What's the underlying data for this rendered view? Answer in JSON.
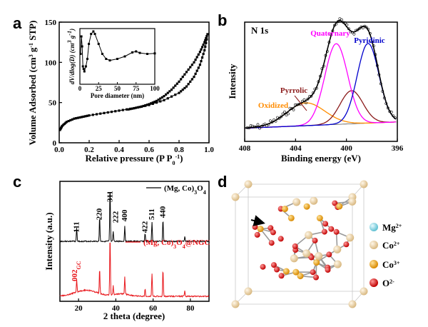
{
  "panels": {
    "a": "a",
    "b": "b",
    "c": "c",
    "d": "d"
  },
  "chart_data": [
    {
      "panel": "a",
      "type": "line",
      "xlabel": "Relative pressure (P P0-1)",
      "ylabel": "Volume Adsorbed (cm3 g-1 STP)",
      "xlim": [
        0.0,
        1.0
      ],
      "ylim": [
        0,
        150
      ],
      "xticks": [
        "0.0",
        "0.2",
        "0.4",
        "0.6",
        "0.8",
        "1.0"
      ],
      "yticks": [
        "0",
        "50",
        "100",
        "150"
      ],
      "series": [
        {
          "x": [
            0.005,
            0.02,
            0.05,
            0.1,
            0.15,
            0.2,
            0.3,
            0.4,
            0.5,
            0.6,
            0.7,
            0.8,
            0.85,
            0.9,
            0.94,
            0.97,
            0.99
          ],
          "y": [
            16,
            21,
            26,
            30,
            32,
            34,
            37,
            40,
            43,
            47,
            53,
            62,
            70,
            82,
            97,
            115,
            133
          ]
        },
        {
          "x": [
            0.99,
            0.97,
            0.94,
            0.9,
            0.85,
            0.8,
            0.75,
            0.7,
            0.65,
            0.6,
            0.55,
            0.5,
            0.45
          ],
          "y": [
            135,
            125,
            113,
            100,
            88,
            76,
            66,
            58,
            52,
            48,
            45,
            43,
            41
          ]
        }
      ],
      "inset": {
        "xlabel": "Pore diameter (nm)",
        "ylabel": "dV/dlog(D) (cm3 g-1)",
        "xlim": [
          0,
          100
        ],
        "xticks": [
          "0",
          "25",
          "50",
          "75",
          "100"
        ],
        "x": [
          1,
          2,
          3,
          4,
          5,
          6,
          8,
          10,
          12,
          15,
          18,
          20,
          25,
          30,
          35,
          40,
          50,
          60,
          70,
          75,
          80,
          90,
          100
        ],
        "y": [
          0.55,
          0.9,
          0.7,
          0.3,
          0.25,
          0.2,
          0.3,
          0.45,
          0.75,
          0.95,
          1.0,
          0.95,
          0.75,
          0.55,
          0.45,
          0.42,
          0.45,
          0.5,
          0.58,
          0.6,
          0.57,
          0.55,
          0.56
        ]
      }
    },
    {
      "panel": "b",
      "type": "line",
      "title": "N 1s",
      "xlabel": "Binding energy (eV)",
      "ylabel": "Intensity",
      "xlim": [
        408,
        396
      ],
      "xticks": [
        "408",
        "404",
        "400",
        "396"
      ],
      "peaks": [
        {
          "name": "Oxidized",
          "center": 403.2,
          "height": 0.22,
          "width": 1.5,
          "color": "#ff8c00"
        },
        {
          "name": "Pyrrolic",
          "center": 399.6,
          "height": 0.32,
          "width": 0.9,
          "color": "#8b1a1a"
        },
        {
          "name": "Quaternary",
          "center": 400.8,
          "height": 0.78,
          "width": 0.9,
          "color": "#ff00ff"
        },
        {
          "name": "Pyridinic",
          "center": 398.3,
          "height": 0.77,
          "width": 0.85,
          "color": "#0000cc"
        }
      ]
    },
    {
      "panel": "c",
      "type": "line",
      "xlabel": "2 theta (degree)",
      "ylabel": "Intensity (a.u.)",
      "xlim": [
        10,
        90
      ],
      "xticks": [
        "20",
        "40",
        "60",
        "80"
      ],
      "series": [
        {
          "name": "(Mg, Co)3O4",
          "color": "#000000",
          "peaks": [
            [
              19,
              0.25
            ],
            [
              31.3,
              0.45
            ],
            [
              36.9,
              1.0
            ],
            [
              38.6,
              0.18
            ],
            [
              44.8,
              0.28
            ],
            [
              55.7,
              0.15
            ],
            [
              59.4,
              0.35
            ],
            [
              65.3,
              0.4
            ],
            [
              77,
              0.08
            ]
          ]
        },
        {
          "name": "(Mg, Co)3O4@NGC",
          "color": "#e8161b",
          "peaks": [
            [
              19,
              0.22
            ],
            [
              31.3,
              0.42
            ],
            [
              36.9,
              1.0
            ],
            [
              38.6,
              0.15
            ],
            [
              44.8,
              0.28
            ],
            [
              55.7,
              0.12
            ],
            [
              59.4,
              0.38
            ],
            [
              65.3,
              0.45
            ],
            [
              77,
              0.1
            ]
          ]
        }
      ],
      "peak_labels": [
        "111",
        "220",
        "311",
        "222",
        "400",
        "422",
        "511",
        "440"
      ],
      "peak_label_positions": [
        19,
        31.3,
        36.9,
        38.6,
        44.8,
        55.7,
        59.4,
        65.3
      ],
      "annotation": "002GC"
    }
  ],
  "crystal_legend": [
    {
      "label": "Mg2+",
      "color": "#7fd6e6"
    },
    {
      "label": "Co2+",
      "color": "#efd9b4"
    },
    {
      "label": "Co3+",
      "color": "#f0a020"
    },
    {
      "label": "O2-",
      "color": "#e01010"
    }
  ]
}
